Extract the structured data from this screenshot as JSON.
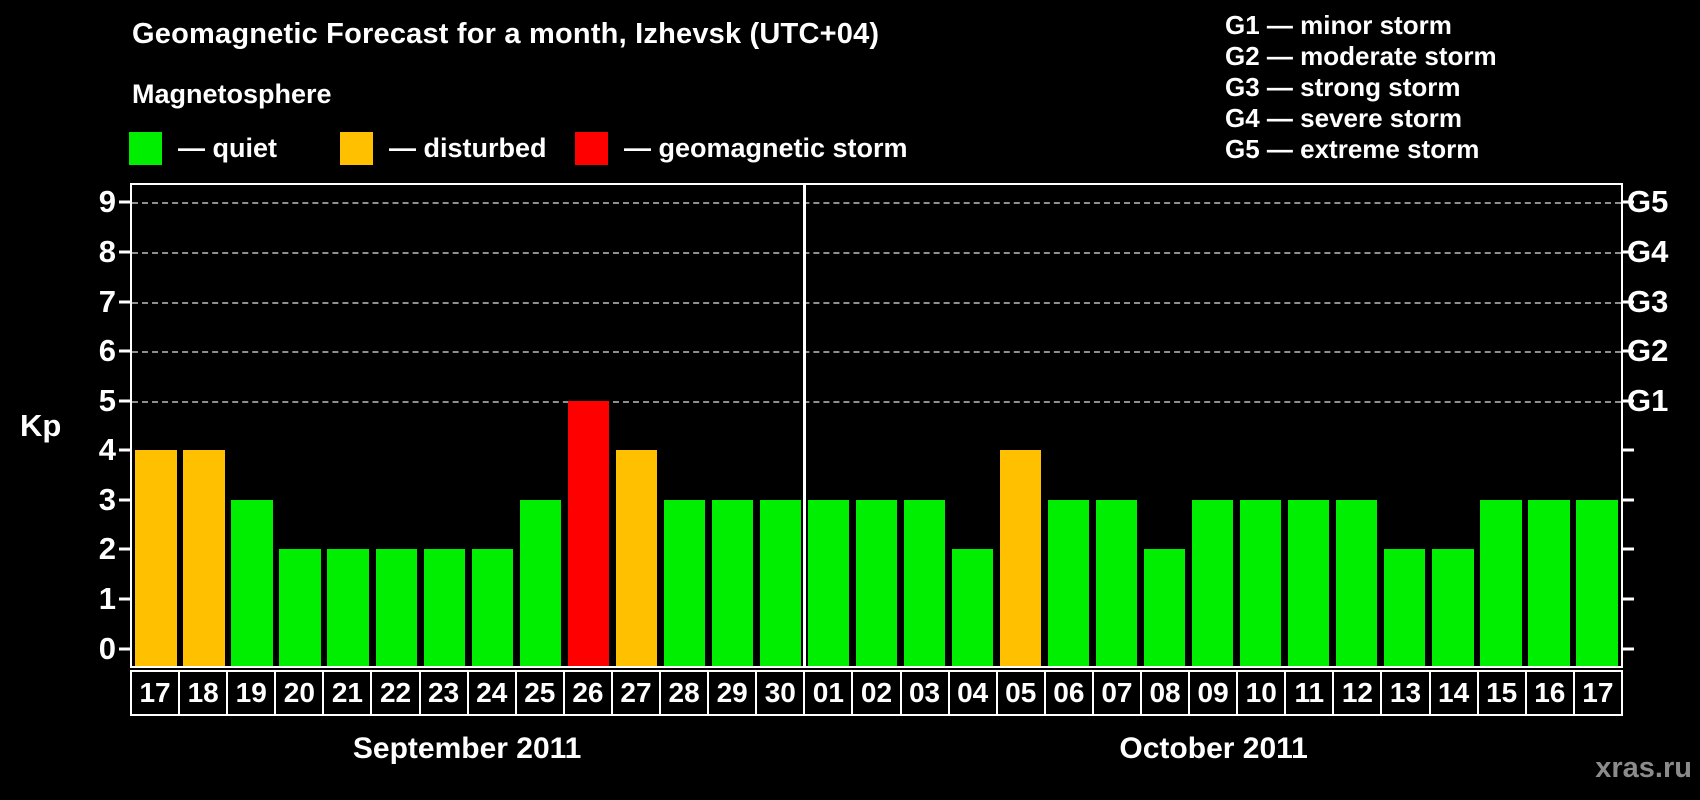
{
  "title": "Geomagnetic Forecast for a month, Izhevsk (UTC+04)",
  "magnetosphere_legend": {
    "heading": "Magnetosphere",
    "items": [
      {
        "label": "— quiet",
        "status": "quiet",
        "color": "#00ee00"
      },
      {
        "label": "— disturbed",
        "status": "disturbed",
        "color": "#ffc000"
      },
      {
        "label": "— geomagnetic storm",
        "status": "storm",
        "color": "#ff0000"
      }
    ]
  },
  "g_scale_legend": {
    "items": [
      {
        "label": "G1 — minor storm"
      },
      {
        "label": "G2 — moderate storm"
      },
      {
        "label": "G3 — strong storm"
      },
      {
        "label": "G4 — severe storm"
      },
      {
        "label": "G5 — extreme storm"
      }
    ]
  },
  "watermark": "xras.ru",
  "chart_data": {
    "type": "bar",
    "title": "Geomagnetic Forecast for a month, Izhevsk (UTC+04)",
    "ylabel": "Kp",
    "ylim": [
      -0.35,
      9.35
    ],
    "y_ticks": [
      0,
      1,
      2,
      3,
      4,
      5,
      6,
      7,
      8,
      9
    ],
    "gridlines_at_kp": [
      5,
      6,
      7,
      8,
      9
    ],
    "grid": "dashed, horizontal, at Kp 5-9 only",
    "right_axis_labels": [
      {
        "label": "G1",
        "kp": 5
      },
      {
        "label": "G2",
        "kp": 6
      },
      {
        "label": "G3",
        "kp": 7
      },
      {
        "label": "G4",
        "kp": 8
      },
      {
        "label": "G5",
        "kp": 9
      }
    ],
    "categories": [
      "17",
      "18",
      "19",
      "20",
      "21",
      "22",
      "23",
      "24",
      "25",
      "26",
      "27",
      "28",
      "29",
      "30",
      "01",
      "02",
      "03",
      "04",
      "05",
      "06",
      "07",
      "08",
      "09",
      "10",
      "11",
      "12",
      "13",
      "14",
      "15",
      "16",
      "17"
    ],
    "values": [
      4,
      4,
      3,
      2,
      2,
      2,
      2,
      2,
      3,
      5,
      4,
      3,
      3,
      3,
      3,
      3,
      3,
      2,
      4,
      3,
      3,
      2,
      3,
      3,
      3,
      3,
      2,
      2,
      3,
      3,
      3
    ],
    "statuses": [
      "disturbed",
      "disturbed",
      "quiet",
      "quiet",
      "quiet",
      "quiet",
      "quiet",
      "quiet",
      "quiet",
      "storm",
      "disturbed",
      "quiet",
      "quiet",
      "quiet",
      "quiet",
      "quiet",
      "quiet",
      "quiet",
      "disturbed",
      "quiet",
      "quiet",
      "quiet",
      "quiet",
      "quiet",
      "quiet",
      "quiet",
      "quiet",
      "quiet",
      "quiet",
      "quiet",
      "quiet"
    ],
    "status_colors": {
      "quiet": "#00ee00",
      "disturbed": "#ffc000",
      "storm": "#ff0000"
    },
    "months": [
      {
        "label": "September 2011",
        "days": 14
      },
      {
        "label": "October 2011",
        "days": 17
      }
    ],
    "month_divider_after_index": 13
  }
}
